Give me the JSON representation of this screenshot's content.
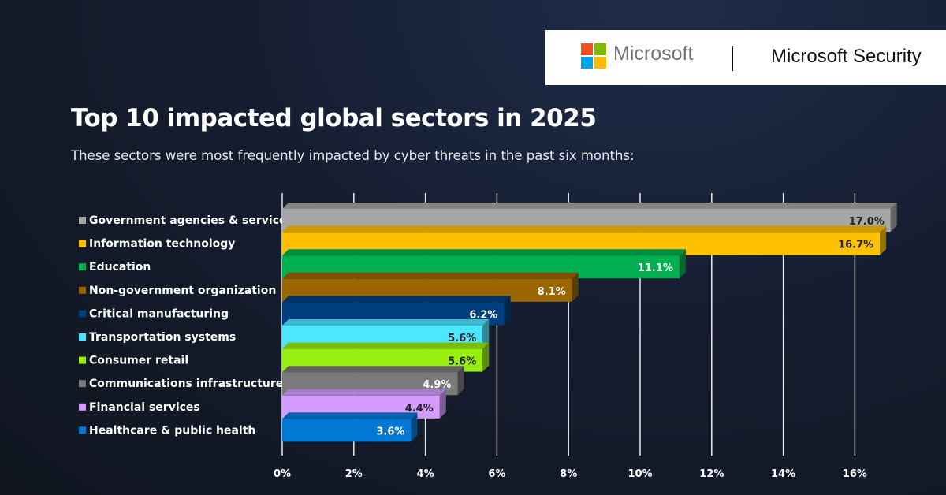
{
  "brand": {
    "company": "Microsoft",
    "product": "Microsoft Security",
    "logo_colors": [
      "#f25022",
      "#7fba00",
      "#00a4ef",
      "#ffb900"
    ]
  },
  "header": {
    "title": "Top 10 impacted global sectors in 2025",
    "subtitle": "These sectors were most frequently impacted by cyber threats in the past six months:"
  },
  "chart_data": {
    "type": "bar",
    "orientation": "horizontal",
    "title": "Top 10 impacted global sectors in 2025",
    "categories": [
      "Government agencies & services",
      "Information technology",
      "Education",
      "Non-government organization",
      "Critical manufacturing",
      "Transportation systems",
      "Consumer retail",
      "Communications infrastructure",
      "Financial services",
      "Healthcare & public health"
    ],
    "values": [
      17.0,
      16.7,
      11.1,
      8.1,
      6.2,
      5.6,
      5.6,
      4.9,
      4.4,
      3.6
    ],
    "value_labels": [
      "17.0%",
      "16.7%",
      "11.1%",
      "8.1%",
      "6.2%",
      "5.6%",
      "5.6%",
      "4.9%",
      "4.4%",
      "3.6%"
    ],
    "colors": [
      "#a6a6a6",
      "#ffc000",
      "#00b050",
      "#996600",
      "#003f7f",
      "#4de6ff",
      "#99ee11",
      "#7a7a7a",
      "#d59cff",
      "#0078d4"
    ],
    "label_colors": [
      "#222222",
      "#222222",
      "#ffffff",
      "#ffffff",
      "#ffffff",
      "#222222",
      "#222222",
      "#ffffff",
      "#222222",
      "#ffffff"
    ],
    "xlim": [
      0,
      17
    ],
    "x_ticks": [
      0,
      2,
      4,
      6,
      8,
      10,
      12,
      14,
      16
    ],
    "x_tick_labels": [
      "0%",
      "2%",
      "4%",
      "6%",
      "8%",
      "10%",
      "12%",
      "14%",
      "16%"
    ],
    "grid": "vertical",
    "legend": "left"
  }
}
